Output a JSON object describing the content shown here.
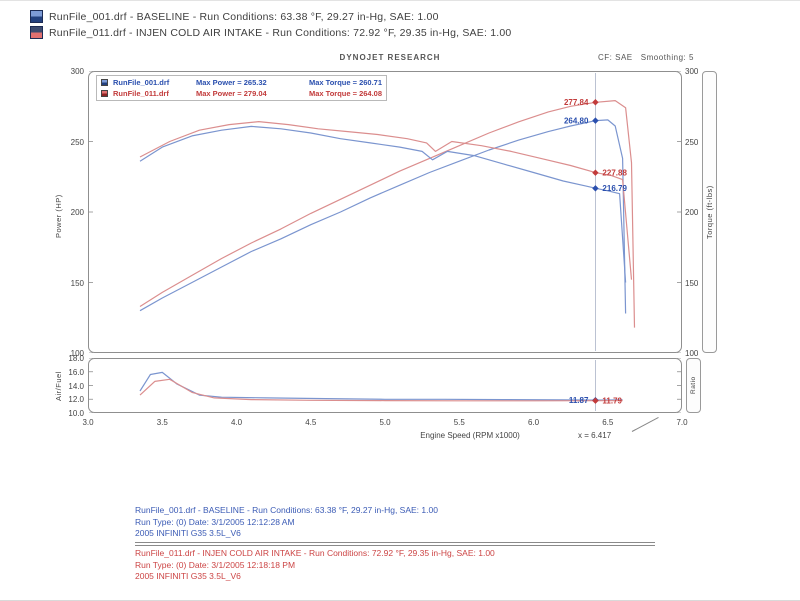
{
  "header": {
    "runs": [
      {
        "text": "RunFile_001.drf - BASELINE  -  Run Conditions: 63.38 °F, 29.27 in-Hg, SAE: 1.00",
        "icon_top": "#7d9bd6",
        "icon_bottom": "#22407f"
      },
      {
        "text": "RunFile_011.drf - INJEN COLD AIR INTAKE  -  Run Conditions: 72.92 °F, 29.35 in-Hg, SAE: 1.00",
        "icon_top": "#3c4a6e",
        "icon_bottom": "#e07070"
      }
    ]
  },
  "sheet": {
    "brand": "DYNOJET RESEARCH",
    "cf": "CF: SAE",
    "smoothing": "Smoothing: 5",
    "legend": [
      {
        "file": "RunFile_001.drf",
        "max_power": "Max Power = 265.32",
        "max_torque": "Max Torque = 260.71",
        "color": "#2a4fae"
      },
      {
        "file": "RunFile_011.drf",
        "max_power": "Max Power = 279.04",
        "max_torque": "Max Torque = 264.08",
        "color": "#c23b3b"
      }
    ],
    "left_axis_title": "Power (HP)",
    "right_axis_title": "Torque (ft-lbs)",
    "afr_axis_title": "Air/Fuel",
    "afr_right_title": "Ratio",
    "x_axis_title": "Engine Speed (RPM x1000)",
    "cursor_annotation": "x = 6.417"
  },
  "chart_data": [
    {
      "type": "line",
      "title": "DYNOJET RESEARCH",
      "xlabel": "Engine Speed (RPM x1000)",
      "ylabel": "Power (HP)",
      "ylabel_right": "Torque (ft-lbs)",
      "xlim": [
        3,
        7
      ],
      "ylim": [
        100,
        300
      ],
      "xticks": [
        3.0,
        3.5,
        4.0,
        4.5,
        5.0,
        5.5,
        6.0,
        6.5,
        7.0
      ],
      "xtick_labels": [
        "3.0",
        "3.5",
        "4.0",
        "4.5",
        "5.0",
        "5.5",
        "6.0",
        "6.5",
        "7.0"
      ],
      "yticks": [
        300,
        250,
        200,
        150,
        100
      ],
      "ytick_labels": [
        "300",
        "250",
        "200",
        "150",
        "100"
      ],
      "grid": false,
      "legend_position": "top-left",
      "series": [
        {
          "name": "Power RunFile_001.drf (BASELINE)",
          "color": "#7b95cf",
          "points": [
            [
              3.35,
              130
            ],
            [
              3.5,
              139
            ],
            [
              3.7,
              150
            ],
            [
              3.9,
              161
            ],
            [
              4.1,
              172
            ],
            [
              4.3,
              181
            ],
            [
              4.5,
              191
            ],
            [
              4.7,
              200
            ],
            [
              4.9,
              210
            ],
            [
              5.1,
              219
            ],
            [
              5.3,
              228
            ],
            [
              5.5,
              236
            ],
            [
              5.7,
              244
            ],
            [
              5.9,
              251
            ],
            [
              6.1,
              257
            ],
            [
              6.25,
              261
            ],
            [
              6.42,
              264.8
            ],
            [
              6.5,
              265.3
            ],
            [
              6.55,
              261
            ],
            [
              6.6,
              238
            ],
            [
              6.62,
              128
            ]
          ]
        },
        {
          "name": "Power RunFile_011.drf (INJEN COLD AIR INTAKE)",
          "color": "#db8e8e",
          "points": [
            [
              3.35,
              133
            ],
            [
              3.5,
              143
            ],
            [
              3.7,
              155
            ],
            [
              3.9,
              167
            ],
            [
              4.1,
              178
            ],
            [
              4.3,
              188
            ],
            [
              4.5,
              199
            ],
            [
              4.7,
              209
            ],
            [
              4.9,
              219
            ],
            [
              5.1,
              229
            ],
            [
              5.3,
              238
            ],
            [
              5.5,
              247
            ],
            [
              5.7,
              256
            ],
            [
              5.9,
              264
            ],
            [
              6.1,
              271
            ],
            [
              6.25,
              275
            ],
            [
              6.42,
              277.8
            ],
            [
              6.55,
              279.0
            ],
            [
              6.62,
              274
            ],
            [
              6.66,
              235
            ],
            [
              6.68,
              118
            ]
          ]
        },
        {
          "name": "Torque RunFile_001.drf (BASELINE)",
          "color": "#7b95cf",
          "points": [
            [
              3.35,
              236
            ],
            [
              3.5,
              246
            ],
            [
              3.7,
              254
            ],
            [
              3.9,
              258
            ],
            [
              4.1,
              260.7
            ],
            [
              4.3,
              259
            ],
            [
              4.5,
              256
            ],
            [
              4.7,
              252
            ],
            [
              4.9,
              249
            ],
            [
              5.1,
              246
            ],
            [
              5.25,
              243
            ],
            [
              5.32,
              237
            ],
            [
              5.42,
              243
            ],
            [
              5.6,
              240
            ],
            [
              5.8,
              234
            ],
            [
              6.0,
              228
            ],
            [
              6.2,
              222
            ],
            [
              6.35,
              218.5
            ],
            [
              6.42,
              216.8
            ],
            [
              6.5,
              215
            ],
            [
              6.58,
              213
            ],
            [
              6.62,
              150
            ]
          ]
        },
        {
          "name": "Torque RunFile_011.drf (INJEN COLD AIR INTAKE)",
          "color": "#db8e8e",
          "points": [
            [
              3.35,
              239
            ],
            [
              3.55,
              250
            ],
            [
              3.75,
              258
            ],
            [
              3.95,
              262
            ],
            [
              4.15,
              264.1
            ],
            [
              4.35,
              262
            ],
            [
              4.55,
              259
            ],
            [
              4.75,
              257
            ],
            [
              4.95,
              255
            ],
            [
              5.15,
              252
            ],
            [
              5.28,
              249
            ],
            [
              5.34,
              243
            ],
            [
              5.45,
              250
            ],
            [
              5.65,
              247
            ],
            [
              5.85,
              243
            ],
            [
              6.05,
              238
            ],
            [
              6.25,
              233
            ],
            [
              6.42,
              227.9
            ],
            [
              6.52,
              226
            ],
            [
              6.6,
              223
            ],
            [
              6.66,
              152
            ]
          ]
        }
      ],
      "cursor": {
        "x": 6.417,
        "readouts": [
          {
            "label": "277.84",
            "value": 277.84,
            "color": "#c23b3b",
            "side": "left"
          },
          {
            "label": "264.80",
            "value": 264.8,
            "color": "#2a4fae",
            "side": "left"
          },
          {
            "label": "227.88",
            "value": 227.88,
            "color": "#c23b3b",
            "side": "right"
          },
          {
            "label": "216.79",
            "value": 216.79,
            "color": "#2a4fae",
            "side": "right"
          }
        ]
      }
    },
    {
      "type": "line",
      "title": "Air/Fuel Ratio",
      "ylabel": "Air/Fuel",
      "xlim": [
        3,
        7
      ],
      "ylim": [
        10,
        18
      ],
      "yticks": [
        18,
        16,
        14,
        12,
        10
      ],
      "ytick_labels": [
        "18.0",
        "16.0",
        "14.0",
        "12.0",
        "10.0"
      ],
      "grid": false,
      "series": [
        {
          "name": "Air/Fuel RunFile_001.drf (BASELINE)",
          "color": "#7b95cf",
          "points": [
            [
              3.35,
              13.2
            ],
            [
              3.42,
              15.6
            ],
            [
              3.5,
              15.9
            ],
            [
              3.6,
              14.2
            ],
            [
              3.75,
              12.6
            ],
            [
              3.9,
              12.3
            ],
            [
              4.2,
              12.2
            ],
            [
              4.6,
              12.1
            ],
            [
              5.0,
              12.0
            ],
            [
              5.4,
              12.0
            ],
            [
              5.8,
              11.95
            ],
            [
              6.2,
              11.9
            ],
            [
              6.42,
              11.87
            ],
            [
              6.6,
              11.9
            ]
          ]
        },
        {
          "name": "Air/Fuel RunFile_011.drf (INJEN COLD AIR INTAKE)",
          "color": "#db8e8e",
          "points": [
            [
              3.35,
              12.6
            ],
            [
              3.45,
              14.6
            ],
            [
              3.55,
              14.9
            ],
            [
              3.7,
              13.0
            ],
            [
              3.85,
              12.2
            ],
            [
              4.1,
              11.95
            ],
            [
              4.5,
              11.85
            ],
            [
              5.0,
              11.8
            ],
            [
              5.5,
              11.78
            ],
            [
              6.0,
              11.78
            ],
            [
              6.42,
              11.79
            ],
            [
              6.6,
              11.8
            ]
          ]
        }
      ],
      "cursor": {
        "x": 6.417,
        "readouts": [
          {
            "label": "11.87",
            "value": 11.87,
            "color": "#2a4fae",
            "side": "left"
          },
          {
            "label": "11.79",
            "value": 11.79,
            "color": "#c23b3b",
            "side": "right"
          }
        ]
      }
    }
  ],
  "footer": {
    "blue": [
      "RunFile_001.drf - BASELINE  -  Run Conditions: 63.38 °F, 29.27 in-Hg, SAE: 1.00",
      "Run Type: (0)  Date: 3/1/2005 12:12:28 AM",
      "2005 INFINITI G35 3.5L_V6"
    ],
    "red": [
      "RunFile_011.drf - INJEN COLD AIR INTAKE  -  Run Conditions: 72.92 °F, 29.35 in-Hg, SAE: 1.00",
      "Run Type: (0)  Date: 3/1/2005 12:18:18 PM",
      "2005 INFINITI G35 3.5L_V6"
    ]
  }
}
